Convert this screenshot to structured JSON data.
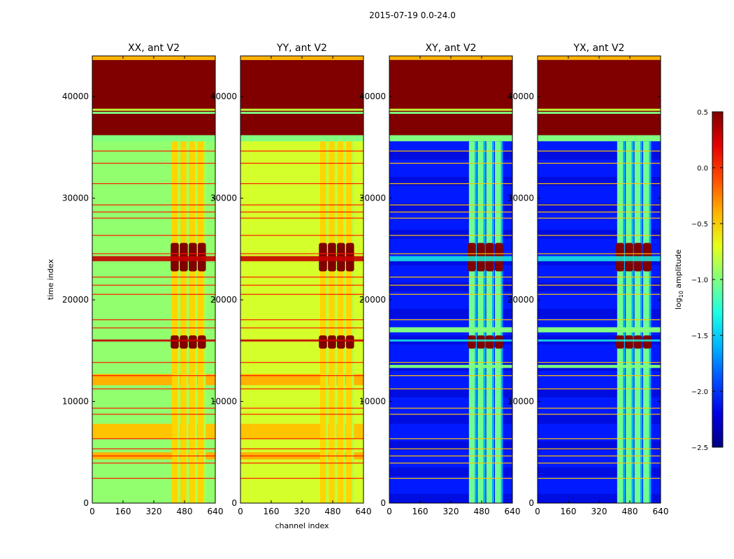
{
  "suptitle": "2015-07-19 0.0-24.0",
  "chart_data": [
    {
      "type": "heatmap",
      "title": "XX, ant V2",
      "pol": "XX",
      "ylabel": "time index",
      "xlabel": "",
      "xlim": [
        0,
        640
      ],
      "ylim": [
        0,
        44000
      ],
      "xticks": [
        0,
        160,
        320,
        480,
        640
      ],
      "xtick_labels": [
        "0",
        "160",
        "320",
        "480",
        "640"
      ],
      "yticks": [
        0,
        10000,
        20000,
        30000,
        40000
      ],
      "ytick_labels": [
        "0",
        "10000",
        "20000",
        "30000",
        "40000"
      ],
      "background_value": -0.95
    },
    {
      "type": "heatmap",
      "title": "YY, ant V2",
      "pol": "YY",
      "ylabel": "",
      "xlabel": "channel index",
      "xlim": [
        0,
        640
      ],
      "ylim": [
        0,
        44000
      ],
      "xticks": [
        0,
        160,
        320,
        480,
        640
      ],
      "xtick_labels": [
        "0",
        "160",
        "320",
        "480",
        "640"
      ],
      "yticks": [
        0,
        10000,
        20000,
        30000,
        40000
      ],
      "ytick_labels": [
        "0",
        "10000",
        "20000",
        "30000",
        "40000"
      ],
      "background_value": -0.75
    },
    {
      "type": "heatmap",
      "title": "XY, ant V2",
      "pol": "XY",
      "ylabel": "",
      "xlabel": "",
      "xlim": [
        0,
        640
      ],
      "ylim": [
        0,
        44000
      ],
      "xticks": [
        0,
        160,
        320,
        480,
        640
      ],
      "xtick_labels": [
        "0",
        "160",
        "320",
        "480",
        "640"
      ],
      "yticks": [
        0,
        10000,
        20000,
        30000,
        40000
      ],
      "ytick_labels": [
        "0",
        "10000",
        "20000",
        "30000",
        "40000"
      ],
      "background_value": -2.05
    },
    {
      "type": "heatmap",
      "title": "YX, ant V2",
      "pol": "YX",
      "ylabel": "",
      "xlabel": "",
      "xlim": [
        0,
        640
      ],
      "ylim": [
        0,
        44000
      ],
      "xticks": [
        0,
        160,
        320,
        480,
        640
      ],
      "xtick_labels": [
        "0",
        "160",
        "320",
        "480",
        "640"
      ],
      "yticks": [
        0,
        10000,
        20000,
        30000,
        40000
      ],
      "ytick_labels": [
        "0",
        "10000",
        "20000",
        "30000",
        "40000"
      ],
      "background_value": -2.05
    }
  ],
  "colorbar": {
    "label_base": "log",
    "label_sub": "10",
    "label_rest": " amplitude",
    "range": [
      -2.5,
      0.5
    ],
    "ticks": [
      0.5,
      0.0,
      -0.5,
      -1.0,
      -1.5,
      -2.0,
      -2.5
    ],
    "tick_labels": [
      "0.5",
      "0.0",
      "−0.5",
      "−1.0",
      "−1.5",
      "−2.0",
      "−2.5"
    ],
    "colormap": "jet"
  }
}
